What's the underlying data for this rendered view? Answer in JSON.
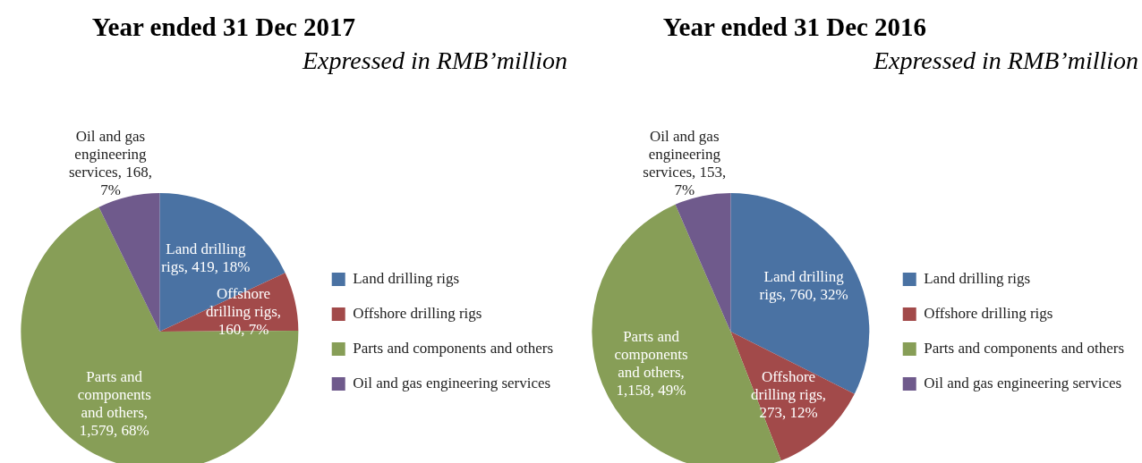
{
  "chart_data": [
    {
      "type": "pie",
      "title": "Year ended 31 Dec 2017",
      "subtitle": "Expressed in RMB’million",
      "categories": [
        "Land drilling rigs",
        "Offshore drilling rigs",
        "Parts and components and others",
        "Oil and gas engineering services"
      ],
      "values": [
        419,
        160,
        1579,
        168
      ],
      "colors": [
        "#4a72a3",
        "#a24a4a",
        "#879e57",
        "#6f5a8c"
      ],
      "value_labels": [
        "Land drilling rigs, 419, 18%",
        "Offshore drilling rigs, 160, 7%",
        "Parts and components and others, 1,579, 68%",
        "Oil and gas engineering services, 168, 7%"
      ],
      "legend": "right"
    },
    {
      "type": "pie",
      "title": "Year ended 31 Dec 2016",
      "subtitle": "Expressed in RMB’million",
      "categories": [
        "Land drilling rigs",
        "Offshore drilling rigs",
        "Parts and components and others",
        "Oil and gas engineering services"
      ],
      "values": [
        760,
        273,
        1158,
        153
      ],
      "colors": [
        "#4a72a3",
        "#a24a4a",
        "#879e57",
        "#6f5a8c"
      ],
      "value_labels": [
        "Land drilling rigs, 760, 32%",
        "Offshore drilling rigs, 273, 12%",
        "Parts and components and others, 1,158, 49%",
        "Oil and gas engineering services, 153, 7%"
      ],
      "legend": "right"
    }
  ]
}
